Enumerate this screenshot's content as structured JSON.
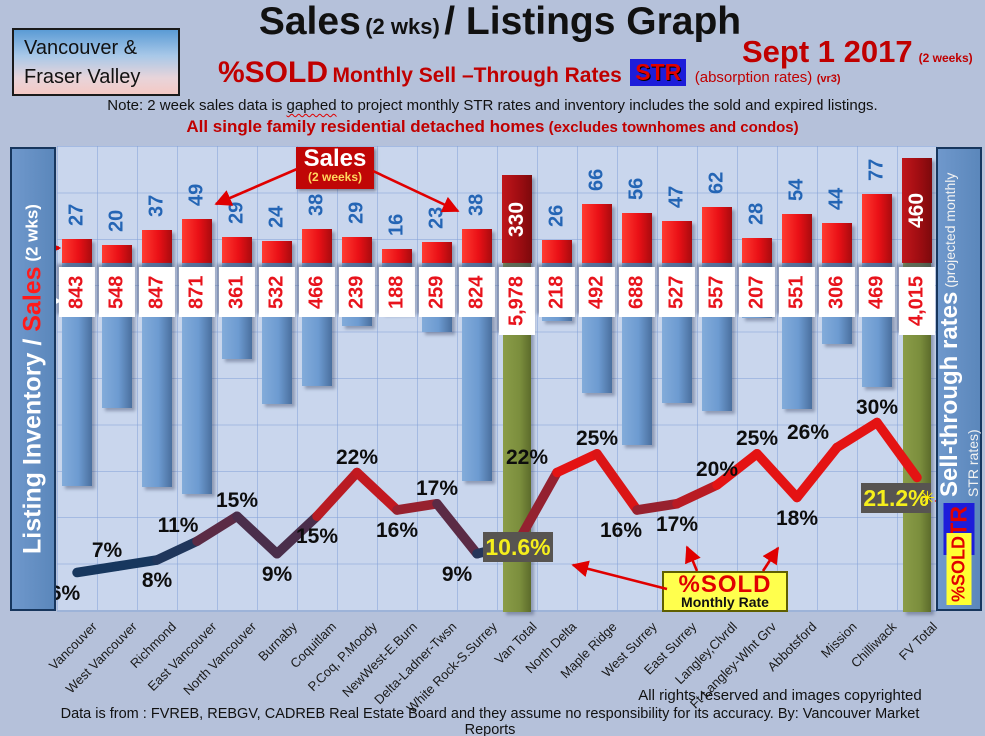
{
  "header": {
    "region_box": {
      "line1": "Vancouver &",
      "line2": "Fraser Valley"
    },
    "title_main": "Sales",
    "title_wks": "(2 wks)",
    "title_rest": "/ Listings Graph",
    "date": "Sept 1 2017",
    "date_note": "(2 weeks)",
    "subtitle_sold": "%SOLD",
    "subtitle_rates": "Monthly Sell –Through Rates",
    "str_badge": "STR",
    "subtitle_absorption": "(absorption rates)",
    "subtitle_version": "(vr3)",
    "note_part1": "Note: 2 week sales data is ",
    "note_typo": "gaphed",
    "note_part2": " to project monthly STR rates and inventory includes the sold and expired listings.",
    "scope": "All single family residential detached homes",
    "scope_paren": " (excludes townhomes and condos)"
  },
  "left_axis": {
    "label_inventory": "Listing Inventory / ",
    "label_sales": "Sales",
    "label_wks": " (2  wks)"
  },
  "right_axis": {
    "title": "Sell-through rates",
    "subtitle": " (projected monthly STR rates)",
    "str_badge": "STR",
    "sold_badge": "%SOLD"
  },
  "annotations": {
    "sales_callout_title": "Sales",
    "sales_callout_sub": "(2 weeks)",
    "sold_callout_title": "%SOLD",
    "sold_callout_sub": "Monthly Rate",
    "van_total_rate": "10.6%",
    "fv_total_rate": "21.2%"
  },
  "footer": {
    "rights": "All rights reserved and  images copyrighted",
    "source": "Data is from : FVREB, REBGV, CADREB Real Estate Board and they assume no responsibility for its accuracy. By: Vancouver Market Reports"
  },
  "colors": {
    "sales_bar": "#ea1016",
    "inventory_bar": "#6d9bd1",
    "total_sales_bar": "#a00d12",
    "total_inventory_bar": "#7b8e3d",
    "line_low": "#17375e",
    "line_high": "#e41313",
    "rate_box_bg": "#575451",
    "rate_box_text": "#f5ef1c",
    "accent_red": "#c00000",
    "arrow_red": "#e00000"
  },
  "chart_data": {
    "type": "combo bar+line",
    "title": "Sales (2 wks) / Listings Graph",
    "categories": [
      "Vancouver",
      "West Vancouver",
      "Richmond",
      "East Vancouver",
      "North Vancouver",
      "Burnaby",
      "Coquitlam",
      "P.Coq, P.Moody",
      "NewWest-E.Burn",
      "Delta-Ladner-Twsn",
      "White Rock-S.Surrey",
      "Van Total",
      "North Delta",
      "Maple Ridge",
      "West Surrey",
      "East Surrey",
      "Langley,Clvrdl",
      "Ft Langley-Wlnt Grv",
      "Abbotsford",
      "Mission",
      "Chilliwack",
      "FV Total"
    ],
    "series": [
      {
        "name": "Sales (2 weeks)",
        "type": "bar",
        "direction": "up",
        "values": [
          27,
          20,
          37,
          49,
          29,
          24,
          38,
          29,
          16,
          23,
          38,
          330,
          26,
          66,
          56,
          47,
          62,
          28,
          54,
          44,
          77,
          460
        ],
        "labels": [
          "27",
          "20",
          "37",
          "49",
          "29",
          "24",
          "38",
          "29",
          "16",
          "23",
          "38",
          "330",
          "26",
          "66",
          "56",
          "47",
          "62",
          "28",
          "54",
          "44",
          "77",
          "460"
        ]
      },
      {
        "name": "Listing Inventory",
        "type": "bar",
        "direction": "down",
        "values": [
          843,
          548,
          847,
          871,
          361,
          532,
          466,
          239,
          188,
          259,
          824,
          5978,
          218,
          492,
          688,
          527,
          557,
          207,
          551,
          306,
          469,
          4015
        ],
        "labels": [
          "843",
          "548",
          "847",
          "871",
          "361",
          "532",
          "466",
          "239",
          "188",
          "259",
          "824",
          "5,978",
          "218",
          "492",
          "688",
          "527",
          "557",
          "207",
          "551",
          "306",
          "469",
          "4,015"
        ]
      },
      {
        "name": "%SOLD Monthly Rate (STR)",
        "type": "line",
        "values": [
          6,
          7,
          8,
          11,
          15,
          9,
          15,
          22,
          16,
          17,
          9,
          10.6,
          22,
          25,
          16,
          17,
          20,
          25,
          18,
          26,
          30,
          21.2
        ],
        "labels": [
          "6%",
          "7%",
          "8%",
          "11%",
          "15%",
          "9%",
          "15%",
          "22%",
          "16%",
          "17%",
          "9%",
          "10.6%",
          "22%",
          "25%",
          "16%",
          "17%",
          "20%",
          "25%",
          "18%",
          "26%",
          "30%",
          "21.2%"
        ]
      }
    ],
    "totals_indices": [
      11,
      21
    ],
    "rate_label_pos": [
      "below",
      "above",
      "below",
      "above",
      "above",
      "below",
      "below",
      "above",
      "below",
      "above",
      "below",
      "box",
      "above",
      "above",
      "below",
      "below",
      "above",
      "above",
      "below",
      "above",
      "above",
      "box"
    ],
    "rate_axis_range_pct": [
      0,
      35
    ],
    "grid": true,
    "legend": "none"
  }
}
